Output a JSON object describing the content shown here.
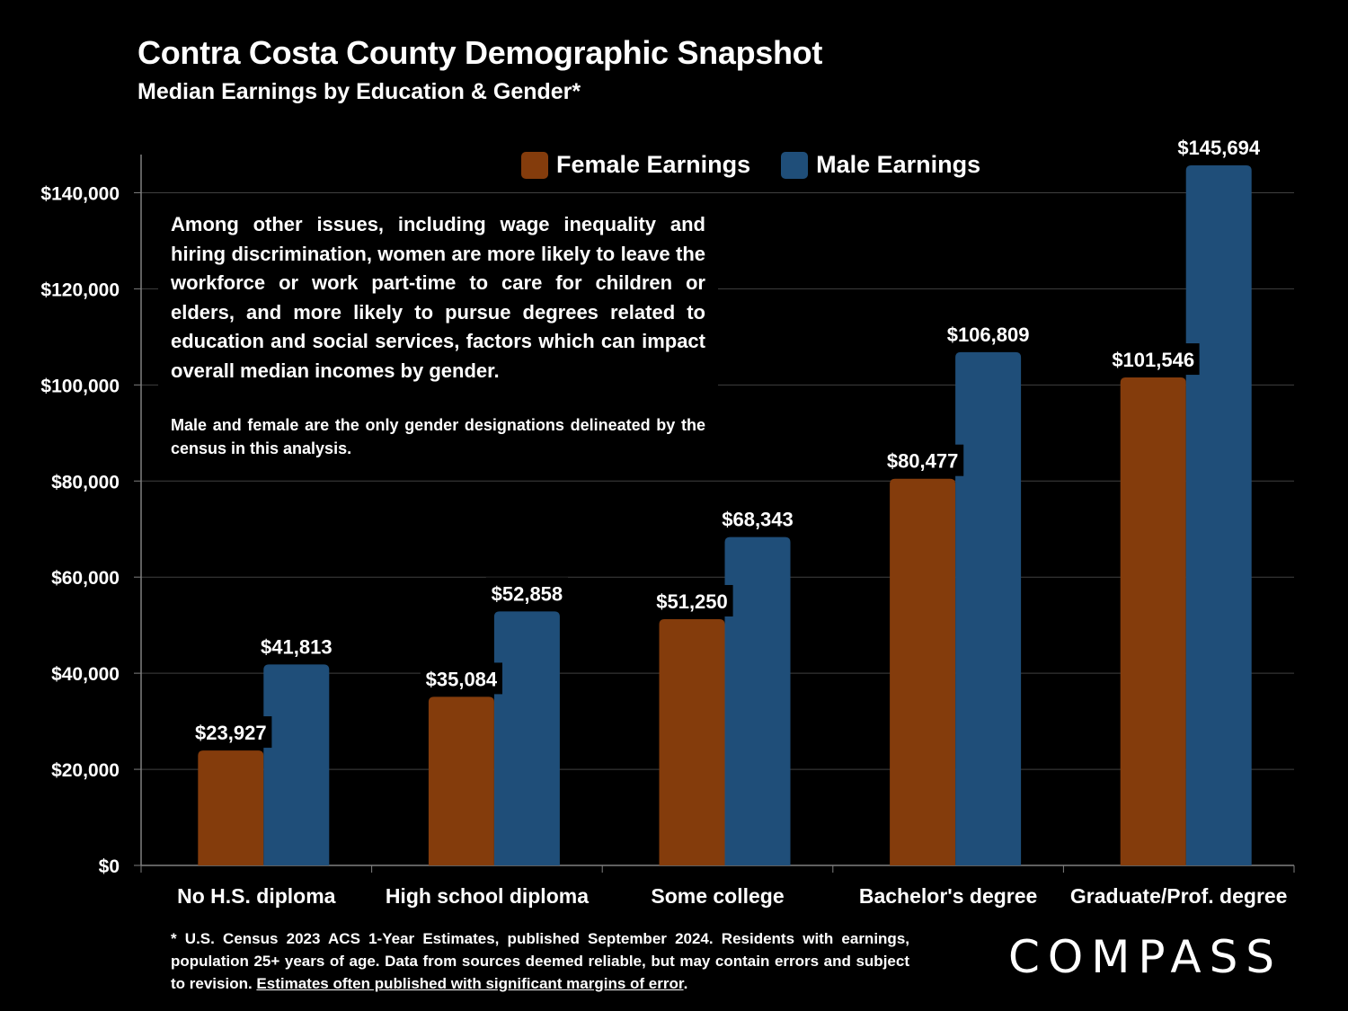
{
  "header": {
    "title": "Contra Costa County Demographic Snapshot",
    "subtitle": "Median Earnings by Education & Gender*"
  },
  "legend": {
    "female_label": "Female Earnings",
    "male_label": "Male Earnings"
  },
  "annotation": {
    "main_text": "Among other issues, including wage inequality and hiring discrimination, women are more likely to leave the workforce or work part-time to care for children or elders, and more likely to pursue degrees related to education and social services, factors which can impact overall median incomes by gender.",
    "note_text": "Male and female are the only gender designations delineated by the census in this analysis."
  },
  "footnote": {
    "text": "* U.S. Census 2023 ACS 1-Year Estimates, published September 2024. Residents with earnings, population 25+ years of age. Data from sources deemed reliable, but may contain errors and subject to revision.",
    "link_text": "Estimates often published with significant margins of error",
    "trailing": "."
  },
  "logo": {
    "text": "COMPASS"
  },
  "colors": {
    "female": "#843C0C",
    "male": "#1F4E79",
    "background": "#000000",
    "gridline": "#404040",
    "text": "#FFFFFF"
  },
  "chart_data": {
    "type": "bar",
    "title": "Contra Costa County Demographic Snapshot",
    "subtitle": "Median Earnings by Education & Gender*",
    "xlabel": "",
    "ylabel": "",
    "categories": [
      "No H.S. diploma",
      "High school diploma",
      "Some college",
      "Bachelor's degree",
      "Graduate/Prof. degree"
    ],
    "series": [
      {
        "name": "Female Earnings",
        "values": [
          23927,
          35084,
          51250,
          80477,
          101546
        ],
        "labels": [
          "$23,927",
          "$35,084",
          "$51,250",
          "$80,477",
          "$101,546"
        ]
      },
      {
        "name": "Male Earnings",
        "values": [
          41813,
          52858,
          68343,
          106809,
          145694
        ],
        "labels": [
          "$41,813",
          "$52,858",
          "$68,343",
          "$106,809",
          "$145,694"
        ]
      }
    ],
    "ylim": [
      0,
      150000
    ],
    "yticks": [
      0,
      20000,
      40000,
      60000,
      80000,
      100000,
      120000,
      140000
    ],
    "ytick_labels": [
      "$0",
      "$20,000",
      "$40,000",
      "$60,000",
      "$80,000",
      "$100,000",
      "$120,000",
      "$140,000"
    ],
    "grid": true,
    "legend_position": "top"
  }
}
